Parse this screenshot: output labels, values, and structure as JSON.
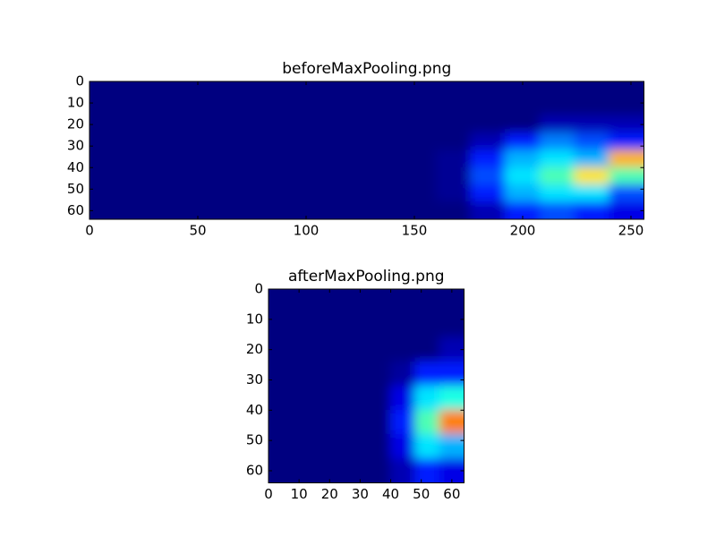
{
  "chart_data": [
    {
      "type": "heatmap",
      "title": "beforeMaxPooling.png",
      "colormap": "jet",
      "clim": [
        0,
        1
      ],
      "xlim": [
        0,
        256
      ],
      "ylim": [
        64,
        0
      ],
      "xticks": [
        0,
        50,
        100,
        150,
        200,
        250
      ],
      "yticks": [
        0,
        10,
        20,
        30,
        40,
        50,
        60
      ],
      "values": [
        [
          0,
          0,
          0,
          0,
          0,
          0,
          0,
          0,
          0,
          0,
          0,
          0,
          0,
          0,
          0,
          0
        ],
        [
          0,
          0,
          0,
          0,
          0,
          0,
          0,
          0,
          0,
          0,
          0,
          0,
          0,
          0,
          0,
          0
        ],
        [
          0,
          0,
          0,
          0,
          0,
          0,
          0,
          0,
          0,
          0,
          0,
          0,
          0,
          0.05,
          0.05,
          0.05
        ],
        [
          0,
          0,
          0,
          0,
          0,
          0,
          0,
          0,
          0,
          0,
          0,
          0.05,
          0.15,
          0.25,
          0.2,
          0.15
        ],
        [
          0,
          0,
          0,
          0,
          0,
          0,
          0,
          0,
          0,
          0,
          0.02,
          0.15,
          0.3,
          0.35,
          0.3,
          0.7
        ],
        [
          0,
          0,
          0,
          0,
          0,
          0,
          0,
          0,
          0,
          0,
          0.02,
          0.2,
          0.35,
          0.45,
          0.65,
          0.45
        ],
        [
          0,
          0,
          0,
          0,
          0,
          0,
          0,
          0,
          0,
          0,
          0.02,
          0.15,
          0.3,
          0.35,
          0.35,
          0.2
        ],
        [
          0,
          0,
          0,
          0,
          0,
          0,
          0,
          0,
          0,
          0,
          0,
          0.05,
          0.15,
          0.2,
          0.15,
          0.1
        ]
      ]
    },
    {
      "type": "heatmap",
      "title": "afterMaxPooling.png",
      "colormap": "jet",
      "clim": [
        0,
        1
      ],
      "xlim": [
        0,
        64
      ],
      "ylim": [
        64,
        0
      ],
      "xticks": [
        0,
        10,
        20,
        30,
        40,
        50,
        60
      ],
      "yticks": [
        0,
        10,
        20,
        30,
        40,
        50,
        60
      ],
      "values": [
        [
          0,
          0,
          0,
          0,
          0,
          0,
          0,
          0
        ],
        [
          0,
          0,
          0,
          0,
          0,
          0,
          0,
          0
        ],
        [
          0,
          0,
          0,
          0,
          0,
          0,
          0,
          0.05
        ],
        [
          0,
          0,
          0,
          0,
          0,
          0.03,
          0.15,
          0.15
        ],
        [
          0,
          0,
          0,
          0,
          0,
          0.1,
          0.35,
          0.4
        ],
        [
          0,
          0,
          0,
          0,
          0,
          0.15,
          0.45,
          0.75
        ],
        [
          0,
          0,
          0,
          0,
          0,
          0.1,
          0.35,
          0.3
        ],
        [
          0,
          0,
          0,
          0,
          0,
          0.05,
          0.15,
          0.1
        ]
      ]
    }
  ]
}
